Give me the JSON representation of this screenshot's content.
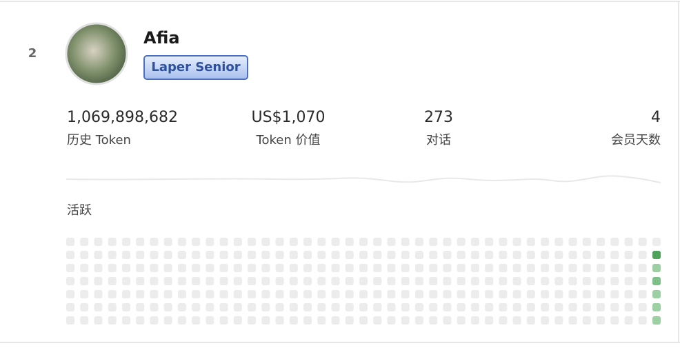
{
  "rank": "2",
  "user": {
    "name": "Afia",
    "badge": "Laper Senior"
  },
  "stats": [
    {
      "value": "1,069,898,682",
      "label": "历史 Token"
    },
    {
      "value": "US$1,070",
      "label": "Token 价值"
    },
    {
      "value": "273",
      "label": "对话"
    },
    {
      "value": "4",
      "label": "会员天数"
    }
  ],
  "activity": {
    "title": "活跃",
    "colors": [
      "#ececec",
      "#b9dcbc",
      "#9ccfa2",
      "#7fbf88",
      "#4ea25c"
    ],
    "levels": [
      [
        0,
        0,
        0,
        0,
        0,
        0,
        0
      ],
      [
        0,
        0,
        0,
        0,
        0,
        0,
        0
      ],
      [
        0,
        0,
        0,
        0,
        0,
        0,
        0
      ],
      [
        0,
        0,
        0,
        0,
        0,
        0,
        0
      ],
      [
        0,
        0,
        0,
        0,
        0,
        0,
        0
      ],
      [
        0,
        0,
        0,
        0,
        0,
        0,
        0
      ],
      [
        0,
        0,
        0,
        0,
        0,
        0,
        0
      ],
      [
        0,
        0,
        0,
        0,
        0,
        0,
        0
      ],
      [
        0,
        0,
        0,
        0,
        0,
        0,
        0
      ],
      [
        0,
        0,
        0,
        0,
        0,
        0,
        0
      ],
      [
        0,
        0,
        0,
        0,
        0,
        0,
        0
      ],
      [
        0,
        0,
        0,
        0,
        0,
        0,
        0
      ],
      [
        0,
        0,
        0,
        0,
        0,
        0,
        0
      ],
      [
        0,
        0,
        0,
        0,
        0,
        0,
        0
      ],
      [
        0,
        0,
        0,
        0,
        0,
        0,
        0
      ],
      [
        0,
        0,
        0,
        0,
        0,
        0,
        0
      ],
      [
        0,
        0,
        0,
        0,
        0,
        0,
        0
      ],
      [
        0,
        0,
        0,
        0,
        0,
        0,
        0
      ],
      [
        0,
        0,
        0,
        0,
        0,
        0,
        0
      ],
      [
        0,
        0,
        0,
        0,
        0,
        0,
        0
      ],
      [
        0,
        0,
        0,
        0,
        0,
        0,
        0
      ],
      [
        0,
        0,
        0,
        0,
        0,
        0,
        0
      ],
      [
        0,
        0,
        0,
        0,
        0,
        0,
        0
      ],
      [
        0,
        0,
        0,
        0,
        0,
        0,
        0
      ],
      [
        0,
        0,
        0,
        0,
        0,
        0,
        0
      ],
      [
        0,
        0,
        0,
        0,
        0,
        0,
        0
      ],
      [
        0,
        0,
        0,
        0,
        0,
        0,
        0
      ],
      [
        0,
        0,
        0,
        0,
        0,
        0,
        0
      ],
      [
        0,
        0,
        0,
        0,
        0,
        0,
        0
      ],
      [
        0,
        0,
        0,
        0,
        0,
        0,
        0
      ],
      [
        0,
        0,
        0,
        0,
        0,
        0,
        0
      ],
      [
        0,
        0,
        0,
        0,
        0,
        0,
        0
      ],
      [
        0,
        0,
        0,
        0,
        0,
        0,
        0
      ],
      [
        0,
        0,
        0,
        0,
        0,
        0,
        0
      ],
      [
        0,
        0,
        0,
        0,
        0,
        0,
        0
      ],
      [
        0,
        0,
        0,
        0,
        0,
        0,
        0
      ],
      [
        0,
        0,
        0,
        0,
        0,
        0,
        0
      ],
      [
        0,
        0,
        0,
        0,
        0,
        0,
        0
      ],
      [
        0,
        0,
        0,
        0,
        0,
        0,
        0
      ],
      [
        0,
        0,
        0,
        0,
        0,
        0,
        0
      ],
      [
        0,
        0,
        0,
        0,
        0,
        0,
        0
      ],
      [
        0,
        0,
        0,
        0,
        0,
        0,
        0
      ],
      [
        0,
        4,
        2,
        3,
        2,
        2,
        2
      ]
    ]
  }
}
